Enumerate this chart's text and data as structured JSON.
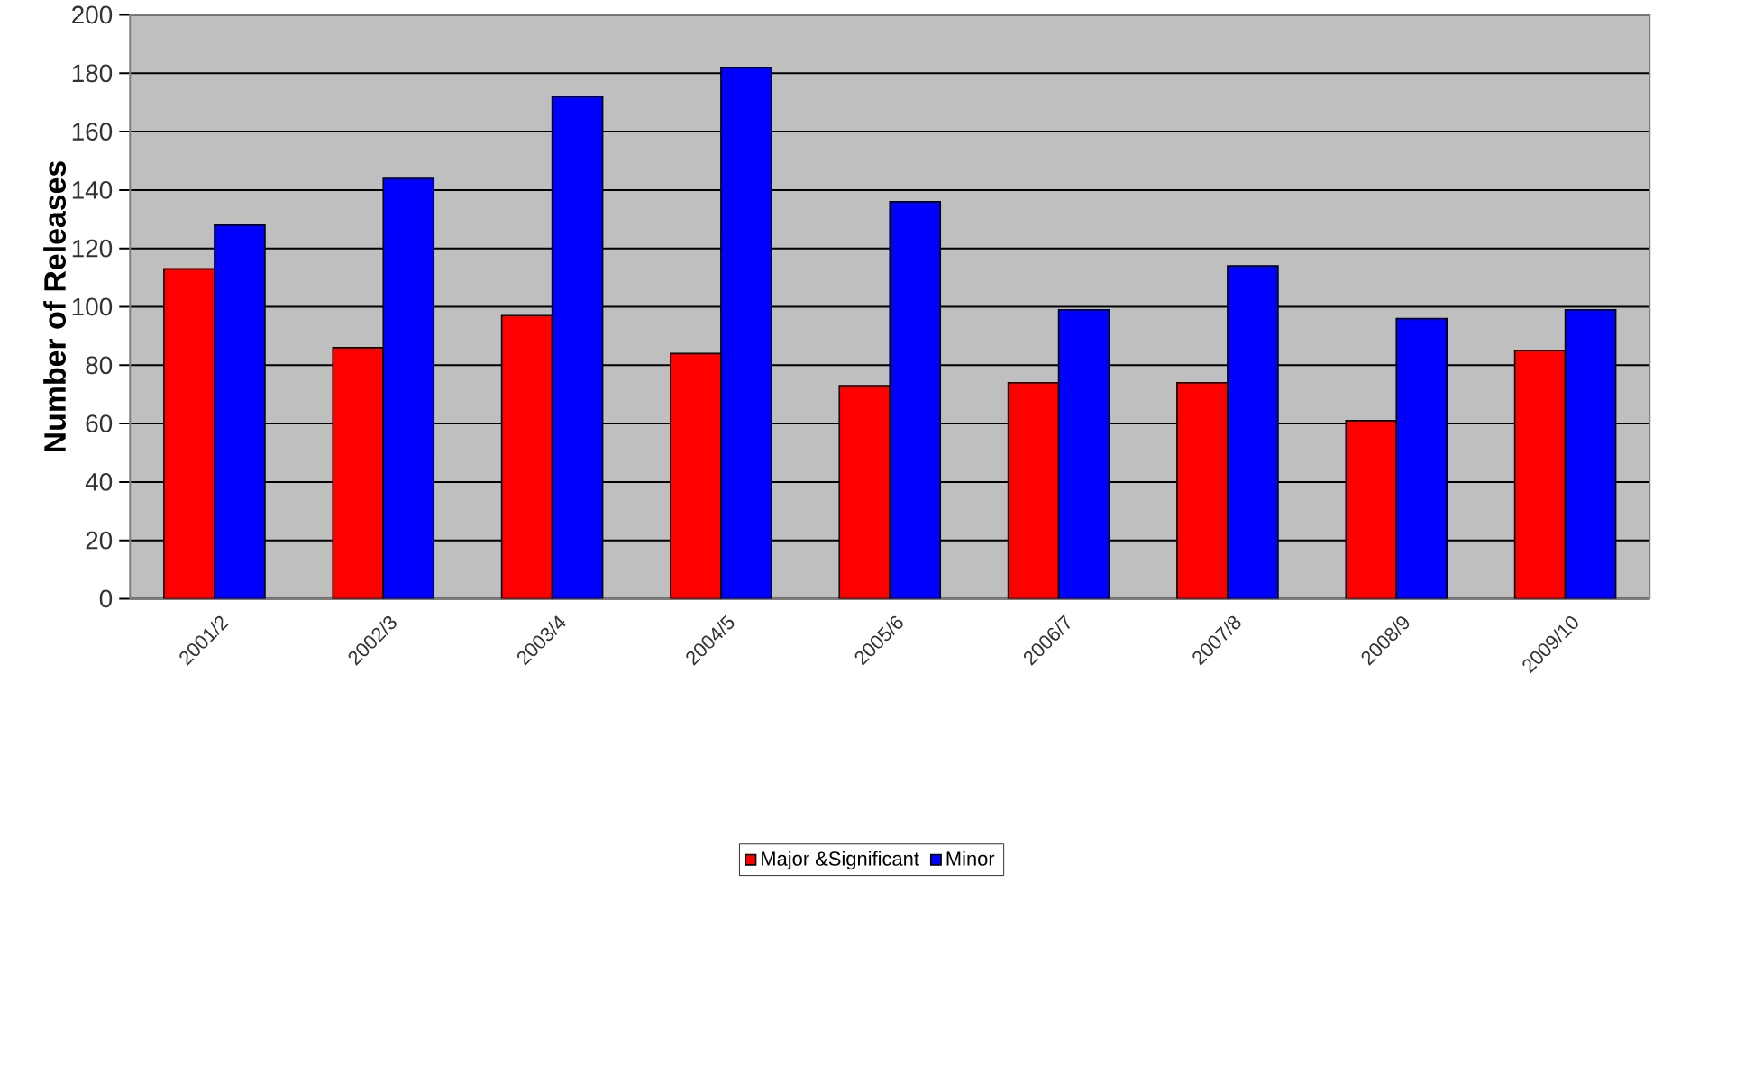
{
  "chart_data": {
    "type": "bar",
    "ylabel": "Number of Releases",
    "categories": [
      "2001/2",
      "2002/3",
      "2003/4",
      "2004/5",
      "2005/6",
      "2006/7",
      "2007/8",
      "2008/9",
      "2009/10"
    ],
    "series": [
      {
        "name": "Major &Significant",
        "color": "#ff0000",
        "values": [
          113,
          86,
          97,
          84,
          73,
          74,
          74,
          61,
          85
        ]
      },
      {
        "name": "Minor",
        "color": "#0000ff",
        "values": [
          128,
          144,
          172,
          182,
          136,
          99,
          114,
          96,
          99
        ]
      }
    ],
    "ylim": [
      0,
      200
    ],
    "yticks": [
      0,
      20,
      40,
      60,
      80,
      100,
      120,
      140,
      160,
      180,
      200
    ],
    "grid": "y",
    "legend": "bottom"
  }
}
